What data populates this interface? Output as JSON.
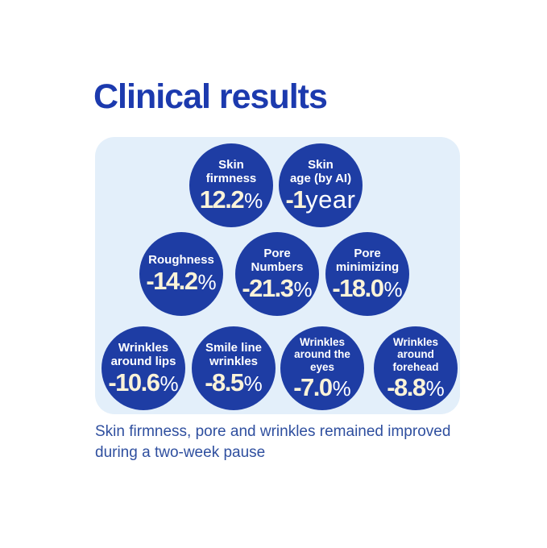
{
  "title": "Clinical results",
  "caption": "Skin firmness, pore and wrinkles remained improved\nduring a two-week pause",
  "colors": {
    "title_blue": "#1c3aae",
    "circle_blue": "#1e3da4",
    "panel_bg": "#e3effa",
    "value_cream": "#fbf3d8",
    "caption_blue": "#2f4f9f",
    "label_white": "#ffffff",
    "page_bg": "#ffffff"
  },
  "panel": {
    "rows": [
      {
        "circles": [
          {
            "label": "Skin\nfirmness",
            "value": "12.2",
            "unit": "%"
          },
          {
            "label": "Skin\nage (by AI)",
            "value": "-1",
            "unit": "year"
          }
        ]
      },
      {
        "circles": [
          {
            "label": "Roughness",
            "value": "-14.2",
            "unit": "%"
          },
          {
            "label": "Pore\nNumbers",
            "value": "-21.3",
            "unit": "%"
          },
          {
            "label": "Pore\nminimizing",
            "value": "-18.0",
            "unit": "%"
          }
        ]
      },
      {
        "circles": [
          {
            "label": "Wrinkles\naround lips",
            "value": "-10.6",
            "unit": "%"
          },
          {
            "label": "Smile line\nwrinkles",
            "value": "-8.5",
            "unit": "%"
          },
          {
            "label": "Wrinkles\naround the\neyes",
            "value": "-7.0",
            "unit": "%"
          },
          {
            "label": "Wrinkles\naround\nforehead",
            "value": "-8.8",
            "unit": "%"
          }
        ]
      }
    ]
  },
  "chart_data": {
    "type": "table",
    "title": "Clinical results",
    "categories": [
      "Skin firmness",
      "Skin age (by AI)",
      "Roughness",
      "Pore Numbers",
      "Pore minimizing",
      "Wrinkles around lips",
      "Smile line wrinkles",
      "Wrinkles around the eyes",
      "Wrinkles around forehead"
    ],
    "values": [
      12.2,
      -1,
      -14.2,
      -21.3,
      -18.0,
      -10.6,
      -8.5,
      -7.0,
      -8.8
    ],
    "units": [
      "%",
      "year",
      "%",
      "%",
      "%",
      "%",
      "%",
      "%",
      "%"
    ],
    "annotations": [
      "Skin firmness, pore and wrinkles remained improved during a two-week pause"
    ],
    "legend_position": "none",
    "grid": false
  }
}
